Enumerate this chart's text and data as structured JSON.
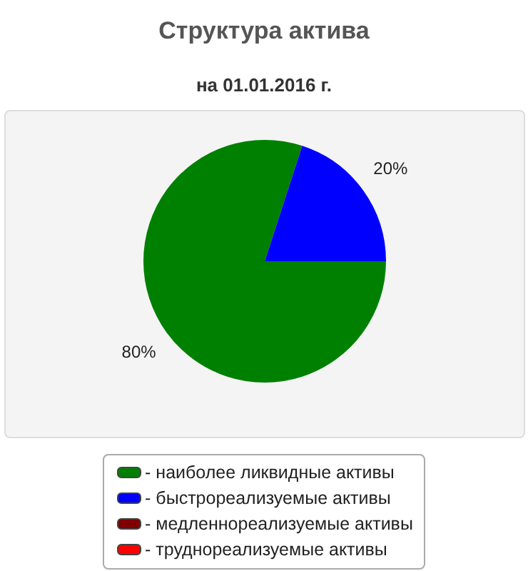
{
  "chart_data": {
    "type": "pie",
    "title": "Структура актива",
    "subtitle": "на 01.01.2016 г.",
    "categories": [
      "- наиболее ликвидные активы",
      "- быстрореализуемые активы",
      "- медленнореализуемые активы",
      "- труднореализуемые активы"
    ],
    "values": [
      80,
      20,
      0,
      0
    ],
    "colors": [
      "#008000",
      "#0000ff",
      "#800000",
      "#ff0000"
    ],
    "value_labels": [
      "80%",
      "20%",
      null,
      null
    ],
    "legend": "bottom"
  }
}
